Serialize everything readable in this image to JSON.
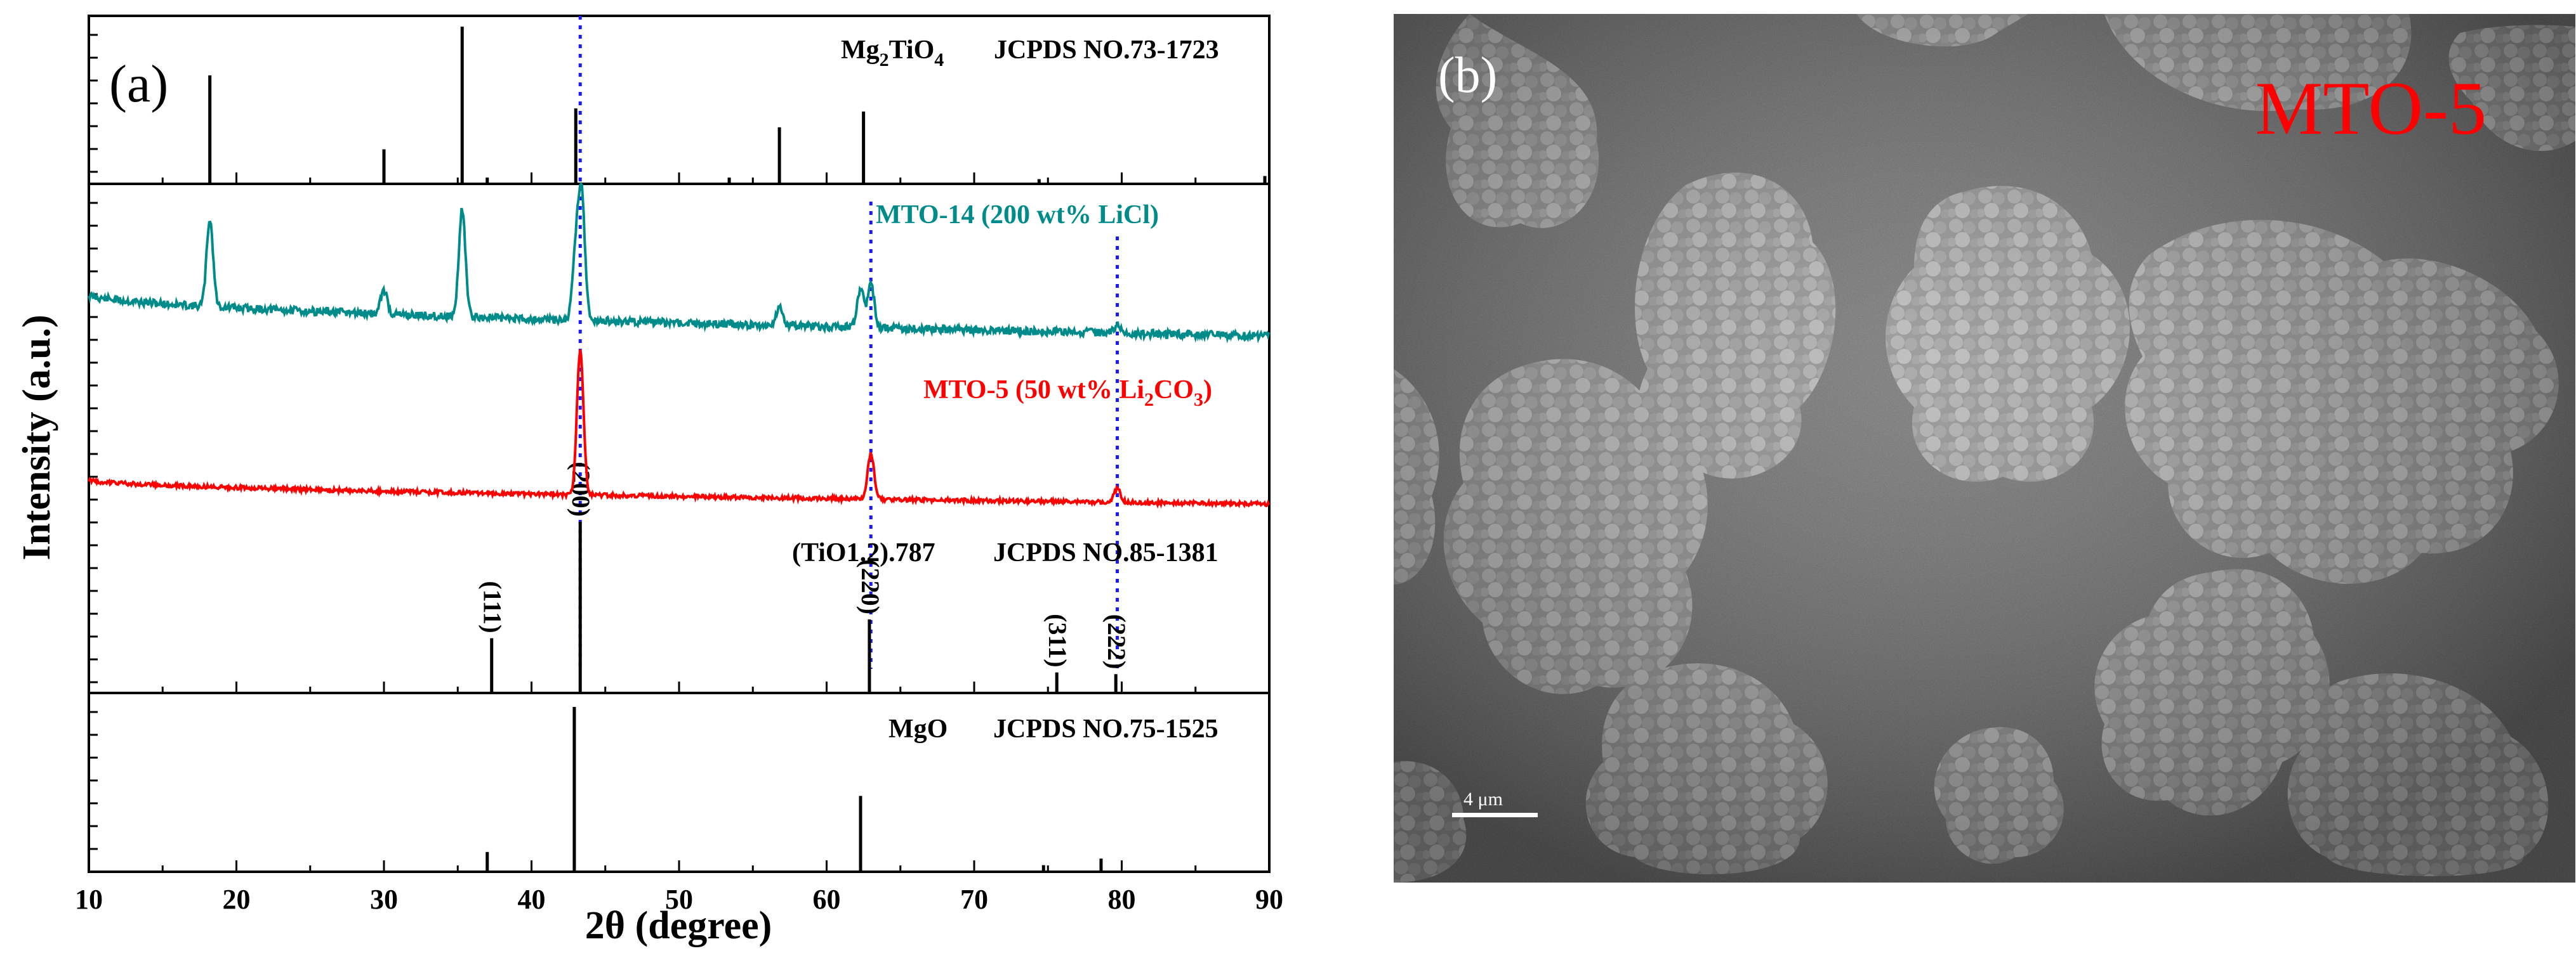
{
  "chart_data": {
    "type": "line",
    "panel_label": "(a)",
    "xlabel": "2θ (degree)",
    "ylabel": "Intensity (a.u.)",
    "xlim": [
      10,
      90
    ],
    "x_ticks": [
      "10",
      "20",
      "30",
      "40",
      "50",
      "60",
      "70",
      "80",
      "90"
    ],
    "reference_lines": [
      43.3,
      63.0,
      79.7
    ],
    "panels": [
      {
        "name": "Mg2TiO4",
        "label_main": "Mg",
        "label_sub1": "2",
        "label_mid": "TiO",
        "label_sub2": "4",
        "card": "JCPDS NO.73-1723",
        "peaks": [
          {
            "x": 18.2,
            "y": 0.69
          },
          {
            "x": 30.0,
            "y": 0.22
          },
          {
            "x": 35.3,
            "y": 1.0
          },
          {
            "x": 37.0,
            "y": 0.04
          },
          {
            "x": 43.0,
            "y": 0.48
          },
          {
            "x": 53.4,
            "y": 0.04
          },
          {
            "x": 56.8,
            "y": 0.36
          },
          {
            "x": 62.5,
            "y": 0.46
          },
          {
            "x": 74.4,
            "y": 0.03
          },
          {
            "x": 89.7,
            "y": 0.05
          }
        ]
      },
      {
        "name": "MTO-14",
        "label": "MTO-14  (200 wt% LiCl)",
        "color": "#008b8b",
        "peaks": [
          {
            "x": 18.2,
            "h": 0.55
          },
          {
            "x": 30.0,
            "h": 0.15
          },
          {
            "x": 35.3,
            "h": 0.68
          },
          {
            "x": 43.0,
            "h": 0.42
          },
          {
            "x": 43.4,
            "h": 0.78
          },
          {
            "x": 56.8,
            "h": 0.12
          },
          {
            "x": 62.3,
            "h": 0.25
          },
          {
            "x": 63.0,
            "h": 0.28
          },
          {
            "x": 79.7,
            "h": 0.05
          }
        ]
      },
      {
        "name": "MTO-5",
        "label_a": "MTO-5  (50 wt% Li",
        "label_sub1": "2",
        "label_b": "CO",
        "label_sub2": "3",
        "label_c": ")",
        "color": "#ff0000",
        "peaks": [
          {
            "x": 43.3,
            "h": 0.86
          },
          {
            "x": 63.0,
            "h": 0.27
          },
          {
            "x": 79.7,
            "h": 0.08
          }
        ]
      },
      {
        "name": "(TiO1.2).787",
        "label": "(TiO1.2).787",
        "card": "JCPDS NO.85-1381",
        "peaks": [
          {
            "x": 37.3,
            "y": 0.32,
            "hkl": "(111)"
          },
          {
            "x": 43.3,
            "y": 1.0,
            "hkl": "(200)"
          },
          {
            "x": 62.9,
            "y": 0.43,
            "hkl": "(220)"
          },
          {
            "x": 75.6,
            "y": 0.12,
            "hkl": "(311)"
          },
          {
            "x": 79.6,
            "y": 0.11,
            "hkl": "(222)"
          }
        ]
      },
      {
        "name": "MgO",
        "label": "MgO",
        "card": "JCPDS NO.75-1525",
        "peaks": [
          {
            "x": 37.0,
            "y": 0.12
          },
          {
            "x": 42.9,
            "y": 1.0
          },
          {
            "x": 62.3,
            "y": 0.46
          },
          {
            "x": 74.7,
            "y": 0.04
          },
          {
            "x": 78.6,
            "y": 0.08
          }
        ]
      }
    ]
  },
  "sem": {
    "panel_label": "(b)",
    "sample": "MTO-5",
    "scale_bar": "4 μm"
  }
}
